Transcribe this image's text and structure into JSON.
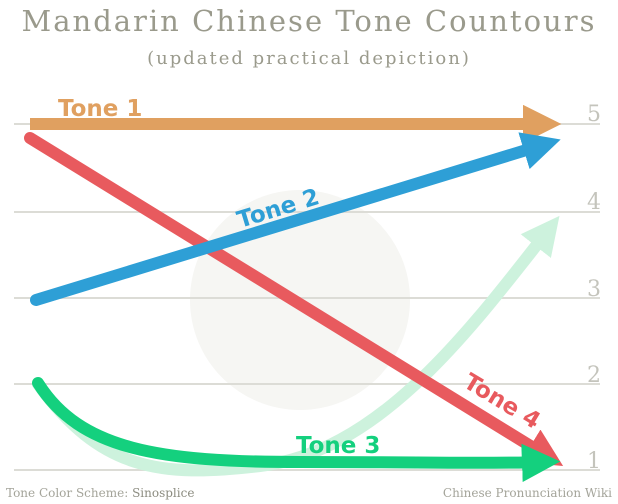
{
  "title": "Mandarin Chinese Tone Countours",
  "subtitle": "(updated practical depiction)",
  "levels": [
    "5",
    "4",
    "3",
    "2",
    "1"
  ],
  "tones": [
    {
      "name": "Tone 1",
      "color": "#e0a060"
    },
    {
      "name": "Tone 2",
      "color": "#2e9fd6"
    },
    {
      "name": "Tone 3",
      "color": "#14d07e"
    },
    {
      "name": "Tone 4",
      "color": "#e85a5e"
    }
  ],
  "tone3_variant_color": "#cdf2dd",
  "gridline_color": "#dcdcd6",
  "footer": {
    "left_prefix": "Tone Color Scheme: ",
    "left_source": "Sinosplice",
    "right": "Chinese Pronunciation Wiki"
  }
}
